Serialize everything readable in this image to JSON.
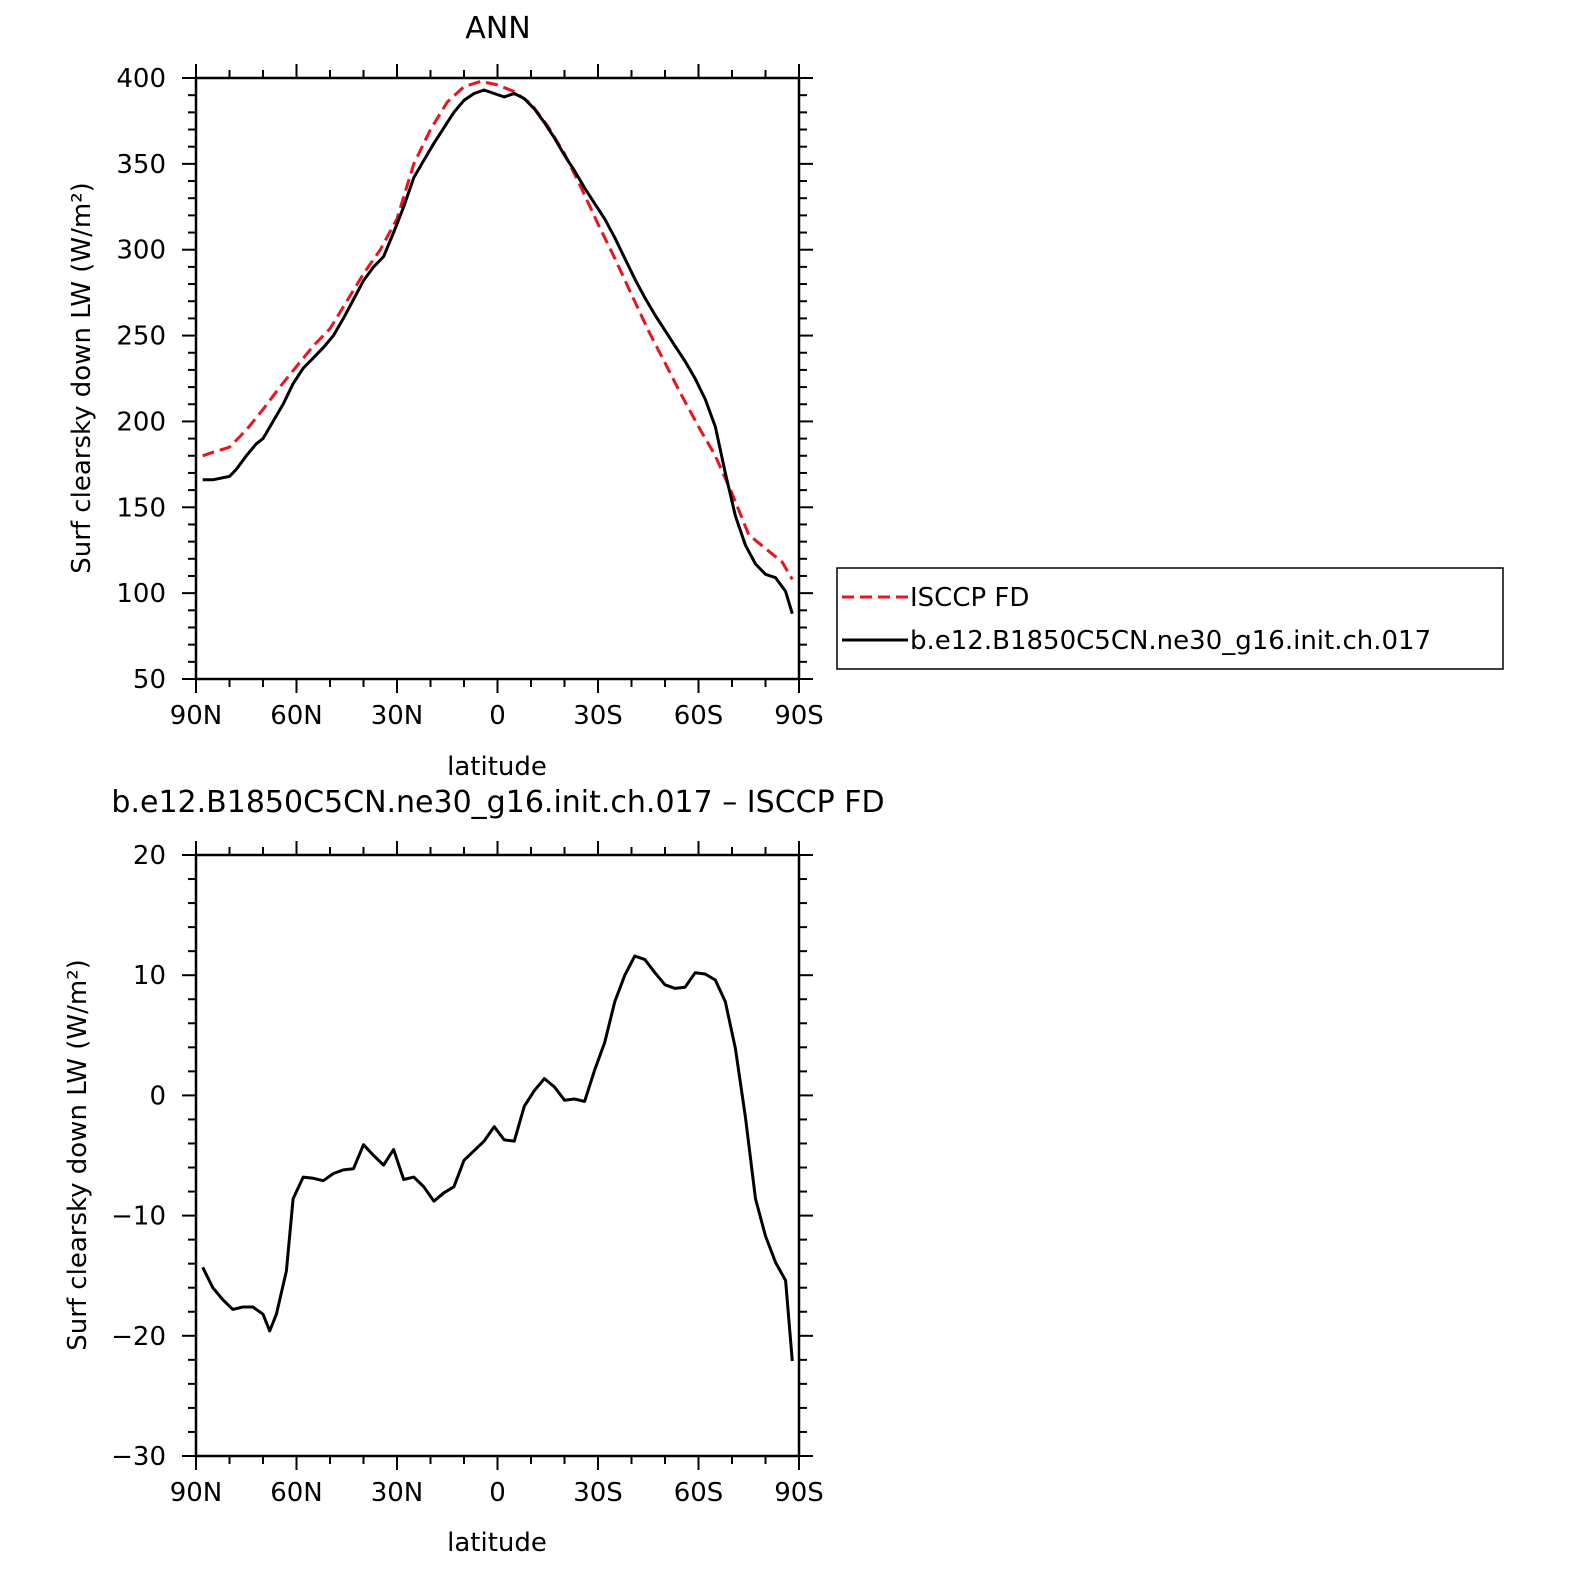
{
  "chart_data": [
    {
      "type": "line",
      "title": "ANN",
      "xlabel": "latitude",
      "ylabel": "Surf clearsky down LW (W/m²)",
      "xlim": [
        90,
        -90
      ],
      "ylim": [
        50,
        400
      ],
      "xticks": [
        90,
        60,
        30,
        0,
        -30,
        -60,
        -90
      ],
      "xtick_labels": [
        "90N",
        "60N",
        "30N",
        "0",
        "30S",
        "60S",
        "90S"
      ],
      "yticks": [
        50,
        100,
        150,
        200,
        250,
        300,
        350,
        400
      ],
      "yminor_step": 10,
      "xminor_step": 10,
      "legend_position": "right",
      "series": [
        {
          "name": "ISCCP FD",
          "color": "#e8141e",
          "dash": "dashed",
          "x": [
            88,
            85,
            80,
            75,
            70,
            65,
            60,
            55,
            50,
            45,
            40,
            35,
            30,
            25,
            20,
            15,
            10,
            5,
            0,
            -5,
            -10,
            -15,
            -20,
            -25,
            -30,
            -35,
            -40,
            -45,
            -50,
            -55,
            -60,
            -65,
            -70,
            -75,
            -80,
            -85,
            -88
          ],
          "y": [
            180,
            182,
            185,
            195,
            207,
            220,
            232,
            244,
            254,
            270,
            286,
            300,
            318,
            350,
            370,
            386,
            395,
            398,
            396,
            392,
            385,
            372,
            356,
            336,
            315,
            295,
            274,
            253,
            234,
            215,
            197,
            180,
            158,
            134,
            126,
            118,
            108
          ]
        },
        {
          "name": "b.e12.B1850C5CN.ne30_g16.init.ch.017",
          "color": "#000000",
          "dash": "solid",
          "x": [
            88,
            85,
            80,
            78,
            75,
            72,
            70,
            67,
            64,
            61,
            58,
            55,
            52,
            49,
            46,
            43,
            40,
            37,
            34,
            31,
            28,
            25,
            22,
            19,
            16,
            13,
            10,
            7,
            4,
            1,
            -2,
            -5,
            -8,
            -11,
            -14,
            -17,
            -20,
            -23,
            -26,
            -29,
            -32,
            -35,
            -38,
            -41,
            -44,
            -47,
            -50,
            -53,
            -56,
            -59,
            -62,
            -65,
            -68,
            -71,
            -74,
            -77,
            -80,
            -83,
            -86,
            -88
          ],
          "y": [
            166,
            166,
            168,
            172,
            180,
            187,
            190,
            200,
            210,
            222,
            231,
            237,
            243,
            250,
            260,
            271,
            282,
            290,
            296,
            310,
            325,
            342,
            352,
            362,
            371,
            380,
            387,
            391,
            393,
            391,
            389,
            391,
            388,
            382,
            374,
            365,
            355,
            346,
            336,
            327,
            318,
            307,
            295,
            283,
            272,
            262,
            253,
            244,
            235,
            225,
            213,
            197,
            170,
            145,
            128,
            117,
            111,
            109,
            101,
            88
          ]
        }
      ]
    },
    {
      "type": "line",
      "title": "b.e12.B1850C5CN.ne30_g16.init.ch.017 – ISCCP FD",
      "xlabel": "latitude",
      "ylabel": "Surf clearsky down LW (W/m²)",
      "xlim": [
        90,
        -90
      ],
      "ylim": [
        -30,
        20
      ],
      "xticks": [
        90,
        60,
        30,
        0,
        -30,
        -60,
        -90
      ],
      "xtick_labels": [
        "90N",
        "60N",
        "30N",
        "0",
        "30S",
        "60S",
        "90S"
      ],
      "yticks": [
        -30,
        -20,
        -10,
        0,
        10,
        20
      ],
      "ytick_labels": [
        "−30",
        "−20",
        "−10",
        "0",
        "10",
        "20"
      ],
      "yminor_step": 2,
      "xminor_step": 10,
      "series": [
        {
          "color": "#000000",
          "dash": "solid",
          "x": [
            88,
            85,
            82,
            79,
            76,
            73,
            70,
            68,
            66,
            63,
            61,
            58,
            55,
            52,
            49,
            46,
            43,
            40,
            37,
            34,
            31,
            28,
            25,
            22,
            19,
            16,
            13,
            10,
            7,
            4,
            1,
            -2,
            -5,
            -8,
            -11,
            -14,
            -17,
            -20,
            -23,
            -26,
            -29,
            -32,
            -35,
            -38,
            -41,
            -44,
            -47,
            -50,
            -53,
            -56,
            -59,
            -62,
            -65,
            -68,
            -71,
            -74,
            -77,
            -80,
            -83,
            -86,
            -88
          ],
          "y": [
            -14.3,
            -16.0,
            -17.0,
            -17.8,
            -17.6,
            -17.6,
            -18.2,
            -19.6,
            -18.2,
            -14.6,
            -8.6,
            -6.8,
            -6.9,
            -7.1,
            -6.5,
            -6.2,
            -6.1,
            -4.1,
            -5.0,
            -5.8,
            -4.5,
            -7.0,
            -6.8,
            -7.6,
            -8.8,
            -8.1,
            -7.6,
            -5.4,
            -4.6,
            -3.8,
            -2.6,
            -3.7,
            -3.8,
            -0.9,
            0.4,
            1.4,
            0.7,
            -0.4,
            -0.3,
            -0.5,
            2.1,
            4.4,
            7.8,
            10.0,
            11.6,
            11.3,
            10.2,
            9.2,
            8.9,
            9.0,
            10.2,
            10.1,
            9.6,
            7.8,
            3.9,
            -1.8,
            -8.6,
            -11.7,
            -13.9,
            -15.4,
            -22.1
          ]
        }
      ]
    }
  ]
}
